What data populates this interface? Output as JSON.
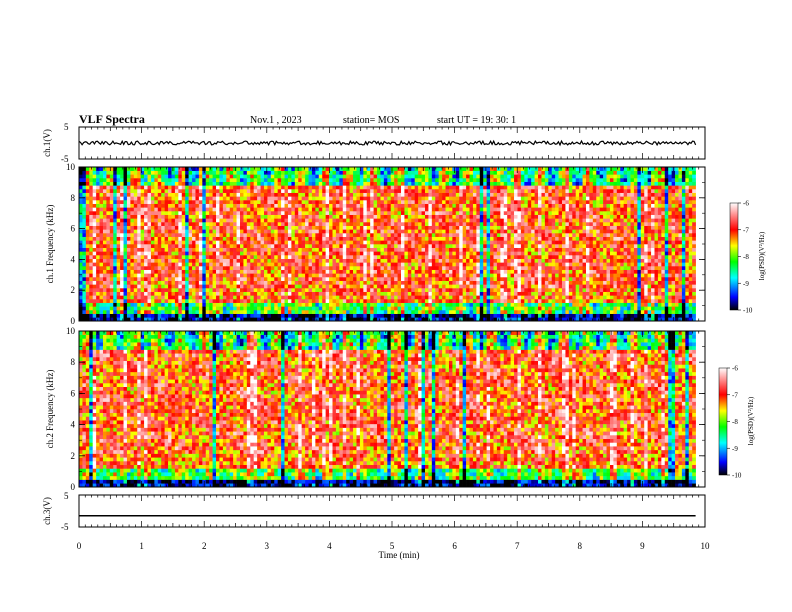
{
  "header": {
    "title": "VLF Spectra",
    "date": "Nov.1 , 2023",
    "station": "station= MOS",
    "start_ut": "start UT = 19: 30: 1"
  },
  "chart_data": {
    "type": "heatmap",
    "x_axis": {
      "label": "Time (min)",
      "range": [
        0,
        10
      ],
      "ticks": [
        "0",
        "1",
        "2",
        "3",
        "4",
        "5",
        "6",
        "7",
        "8",
        "9",
        "10"
      ],
      "data_end": 9.85
    },
    "panels": [
      {
        "id": "ch1-waveform",
        "type": "line",
        "ylabel": "ch.1(V)",
        "ylim": [
          -5,
          5
        ],
        "yticks": [
          "5",
          "-5"
        ],
        "trace_level": 0,
        "noise_amplitude": 0.6
      },
      {
        "id": "ch1-spectrogram",
        "type": "heatmap",
        "ylabel": "ch.1 Frequency (kHz)",
        "ylim": [
          0,
          10
        ],
        "yticks": [
          "0",
          "2",
          "4",
          "6",
          "8",
          "10"
        ],
        "colorbar": {
          "label": "log(PSD)(V²/Hz)",
          "range": [
            -10,
            -6
          ],
          "ticks": [
            "-6",
            "-7",
            "-8",
            "-9",
            "-10"
          ],
          "colors": [
            "#000000",
            "#0000ff",
            "#00ffff",
            "#00ff00",
            "#ffff00",
            "#ff0000",
            "#ffffff"
          ]
        }
      },
      {
        "id": "ch2-spectrogram",
        "type": "heatmap",
        "ylabel": "ch.2 Frequency (kHz)",
        "ylim": [
          0,
          10
        ],
        "yticks": [
          "0",
          "2",
          "4",
          "6",
          "8",
          "10"
        ],
        "colorbar": {
          "label": "log(PSD)(V²/Hz)",
          "range": [
            -10,
            -6
          ],
          "ticks": [
            "-6",
            "-7",
            "-8",
            "-9",
            "-10"
          ],
          "colors": [
            "#000000",
            "#0000ff",
            "#00ffff",
            "#00ff00",
            "#ffff00",
            "#ff0000",
            "#ffffff"
          ]
        }
      },
      {
        "id": "ch3-waveform",
        "type": "line",
        "ylabel": "ch.3(V)",
        "ylim": [
          -5,
          5
        ],
        "yticks": [
          "5",
          "-5"
        ],
        "trace_level": -1.5,
        "noise_amplitude": 0
      }
    ]
  }
}
